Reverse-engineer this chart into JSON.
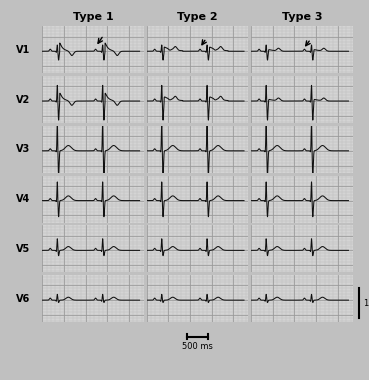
{
  "title_type1": "Type 1",
  "title_type2": "Type 2",
  "title_type3": "Type 3",
  "leads": [
    "V1",
    "V2",
    "V3",
    "V4",
    "V5",
    "V6"
  ],
  "background_color": "#d4d4d4",
  "grid_minor_color": "#bbbbbb",
  "grid_major_color": "#999999",
  "ecg_color": "#111111",
  "fig_bg": "#c0c0c0",
  "title_fontsize": 8,
  "lead_fontsize": 7,
  "scale_fontsize": 6
}
